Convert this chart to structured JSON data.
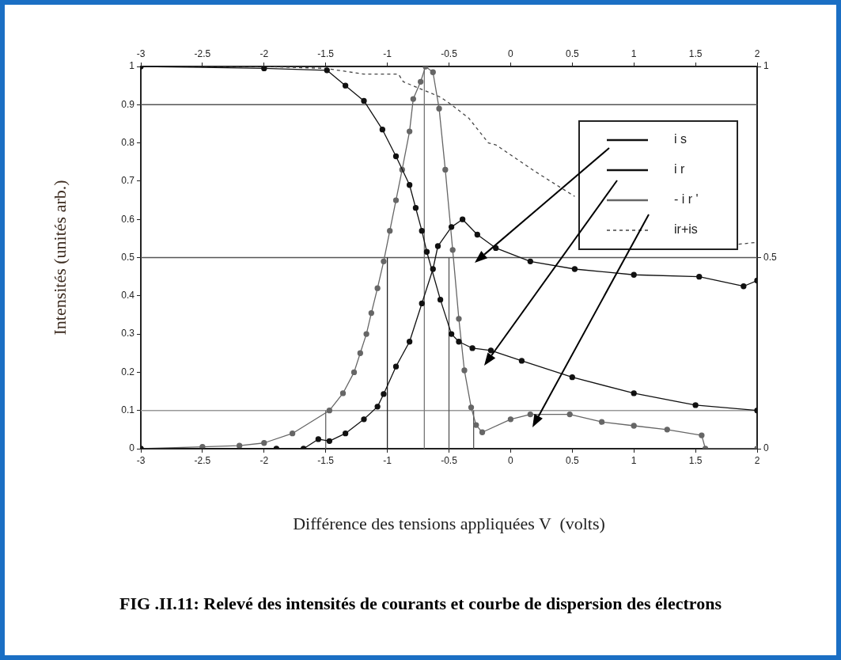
{
  "chart_data": {
    "type": "line",
    "xlabel": "Différence des tensions appliquées V  (volts)",
    "ylabel": "Intensités (unités arb.)",
    "xlim": [
      -3,
      2
    ],
    "xticks": [
      -3,
      -2.5,
      -2,
      -1.5,
      -1,
      -0.5,
      0,
      0.5,
      1,
      1.5,
      2
    ],
    "x2lim": [
      -3,
      2
    ],
    "x2ticks": [
      -3,
      -2.5,
      -2,
      -1.5,
      -1,
      -0.5,
      0,
      0.5,
      1,
      1.5,
      2
    ],
    "ylim": [
      0,
      1
    ],
    "yticks": [
      0,
      0.1,
      0.2,
      0.3,
      0.4,
      0.5,
      0.6,
      0.7,
      0.8,
      0.9,
      1
    ],
    "y2lim": [
      0,
      1
    ],
    "y2ticks": [
      0,
      0.5,
      1
    ],
    "grid": false,
    "legend": "top right",
    "annotations": [
      "FIG .II.11: Relevé des intensités de courants et courbe de dispersion des électrons"
    ],
    "ref_lines": [
      {
        "axis": "y",
        "value": 0.9,
        "color": "#555555"
      },
      {
        "axis": "y",
        "value": 0.5,
        "color": "#555555"
      },
      {
        "axis": "y",
        "value": 0.1,
        "color": "#999999"
      }
    ],
    "series": [
      {
        "name": "i s",
        "color": "#111111",
        "marker": "circle",
        "line_style": "solid",
        "x": [
          -3,
          -1.9,
          -1.68,
          -1.56,
          -1.47,
          -1.34,
          -1.19,
          -1.08,
          -1.03,
          -0.93,
          -0.82,
          -0.72,
          -0.63,
          -0.59,
          -0.48,
          -0.39,
          -0.27,
          -0.12,
          0.16,
          0.52,
          1.0,
          1.53,
          1.89,
          2.0
        ],
        "values": [
          0,
          0,
          0,
          0.025,
          0.02,
          0.04,
          0.077,
          0.11,
          0.143,
          0.215,
          0.28,
          0.38,
          0.47,
          0.53,
          0.58,
          0.6,
          0.56,
          0.525,
          0.49,
          0.47,
          0.455,
          0.45,
          0.425,
          0.44
        ]
      },
      {
        "name": "i r",
        "color": "#111111",
        "marker": "circle",
        "line_style": "solid",
        "x": [
          -3,
          -2,
          -1.49,
          -1.34,
          -1.19,
          -1.04,
          -0.93,
          -0.82,
          -0.77,
          -0.72,
          -0.68,
          -0.57,
          -0.48,
          -0.42,
          -0.31,
          -0.16,
          0.09,
          0.5,
          1.0,
          1.5,
          2.0
        ],
        "values": [
          1,
          0.995,
          0.99,
          0.95,
          0.91,
          0.835,
          0.765,
          0.69,
          0.63,
          0.57,
          0.515,
          0.39,
          0.3,
          0.28,
          0.263,
          0.257,
          0.23,
          0.187,
          0.145,
          0.114,
          0.1
        ]
      },
      {
        "name": "- i r '",
        "color": "#666666",
        "marker": "circle",
        "line_style": "solid",
        "x": [
          -3,
          -2.5,
          -2.2,
          -2.0,
          -1.77,
          -1.47,
          -1.36,
          -1.27,
          -1.22,
          -1.17,
          -1.13,
          -1.08,
          -1.03,
          -0.98,
          -0.93,
          -0.88,
          -0.82,
          -0.79,
          -0.73,
          -0.69,
          -0.63,
          -0.58,
          -0.53,
          -0.47,
          -0.42,
          -0.375,
          -0.32,
          -0.28,
          -0.23,
          0,
          0.16,
          0.48,
          0.74,
          1.0,
          1.27,
          1.55,
          1.58,
          2.0
        ],
        "values": [
          0,
          0.005,
          0.008,
          0.015,
          0.04,
          0.1,
          0.145,
          0.2,
          0.25,
          0.3,
          0.355,
          0.42,
          0.49,
          0.57,
          0.65,
          0.73,
          0.83,
          0.915,
          0.96,
          1.0,
          0.985,
          0.89,
          0.73,
          0.52,
          0.34,
          0.205,
          0.108,
          0.062,
          0.043,
          0.077,
          0.09,
          0.09,
          0.07,
          0.06,
          0.05,
          0.035,
          0,
          0
        ]
      },
      {
        "name": "ir+is",
        "color": "#444444",
        "marker": "none",
        "line_style": "dashed",
        "x": [
          -3,
          -2,
          -1.5,
          -1.19,
          -0.91,
          -0.87,
          -0.57,
          -0.48,
          -0.34,
          -0.18,
          -0.12,
          0.2,
          0.52,
          1.2,
          1.85,
          2.0
        ],
        "values": [
          1,
          1,
          0.995,
          0.98,
          0.98,
          0.96,
          0.92,
          0.9,
          0.865,
          0.8,
          0.795,
          0.725,
          0.66,
          null,
          0.535,
          0.54
        ]
      },
      {
        "color": "#666666",
        "marker": "none",
        "line_style": "solid",
        "x": [
          -1.5,
          -1.5
        ],
        "values": [
          0,
          0.1
        ]
      },
      {
        "color": "#222222",
        "marker": "none",
        "line_style": "solid",
        "x": [
          -1,
          -1
        ],
        "values": [
          0,
          0.5
        ]
      },
      {
        "color": "#777777",
        "marker": "none",
        "line_style": "solid",
        "x": [
          -0.7,
          -0.7
        ],
        "values": [
          0,
          1
        ]
      },
      {
        "color": "#555555",
        "marker": "none",
        "line_style": "solid",
        "x": [
          -0.5,
          -0.5
        ],
        "values": [
          0,
          0.5
        ]
      },
      {
        "color": "#555555",
        "marker": "none",
        "line_style": "solid",
        "x": [
          -0.3,
          -0.3
        ],
        "values": [
          0,
          0.1
        ]
      }
    ]
  }
}
